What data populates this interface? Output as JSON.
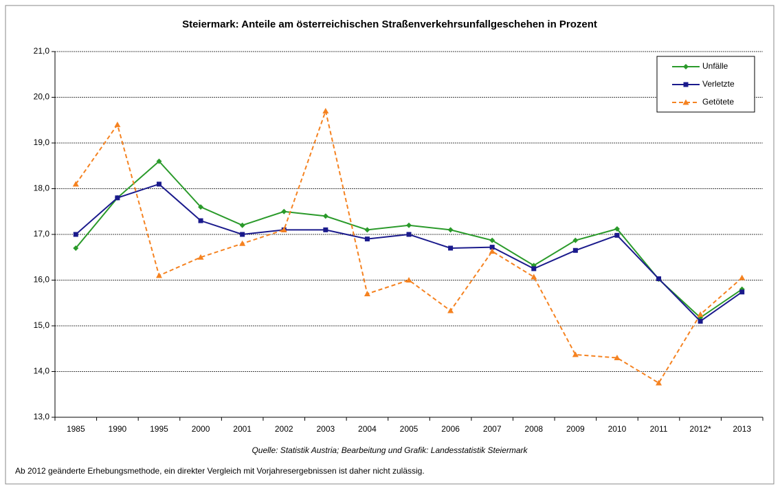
{
  "chart_data": {
    "type": "line",
    "title": "Steiermark: Anteile am österreichischen Straßenverkehrsunfallgeschehen in Prozent",
    "categories": [
      "1985",
      "1990",
      "1995",
      "2000",
      "2001",
      "2002",
      "2003",
      "2004",
      "2005",
      "2006",
      "2007",
      "2008",
      "2009",
      "2010",
      "2011",
      "2012*",
      "2013"
    ],
    "series": [
      {
        "name": "Unfälle",
        "color": "#2a9a2a",
        "marker": "diamond",
        "dashed": false,
        "values": [
          16.7,
          17.8,
          18.6,
          17.6,
          17.2,
          17.5,
          17.4,
          17.1,
          17.2,
          17.1,
          16.87,
          16.32,
          16.87,
          17.12,
          16.02,
          15.18,
          15.8
        ]
      },
      {
        "name": "Verletzte",
        "color": "#1a1a8c",
        "marker": "square",
        "dashed": false,
        "values": [
          17.0,
          17.8,
          18.1,
          17.3,
          17.0,
          17.1,
          17.1,
          16.9,
          17.0,
          16.7,
          16.72,
          16.25,
          16.65,
          16.98,
          16.03,
          15.1,
          15.74
        ]
      },
      {
        "name": "Getötete",
        "color": "#f58220",
        "marker": "triangle",
        "dashed": true,
        "values": [
          18.1,
          19.4,
          16.1,
          16.5,
          16.8,
          17.1,
          19.7,
          15.7,
          16.0,
          15.33,
          16.63,
          16.07,
          14.37,
          14.3,
          13.75,
          15.25,
          16.05
        ]
      }
    ],
    "ylim": [
      13,
      21
    ],
    "yticks": [
      {
        "value": 13,
        "label": "13,0"
      },
      {
        "value": 14,
        "label": "14,0"
      },
      {
        "value": 15,
        "label": "15,0"
      },
      {
        "value": 16,
        "label": "16,0"
      },
      {
        "value": 17,
        "label": "17,0"
      },
      {
        "value": 18,
        "label": "18,0"
      },
      {
        "value": 19,
        "label": "19,0"
      },
      {
        "value": 20,
        "label": "20,0"
      },
      {
        "value": 21,
        "label": "21,0"
      }
    ],
    "grid": true,
    "legend": "upper right",
    "source": "Quelle: Statistik Austria; Bearbeitung und Grafik: Landesstatistik Steiermark",
    "footnote": "Ab 2012 geänderte Erhebungsmethode, ein direkter Vergleich mit Vorjahresergebnissen ist daher nicht zulässig."
  }
}
